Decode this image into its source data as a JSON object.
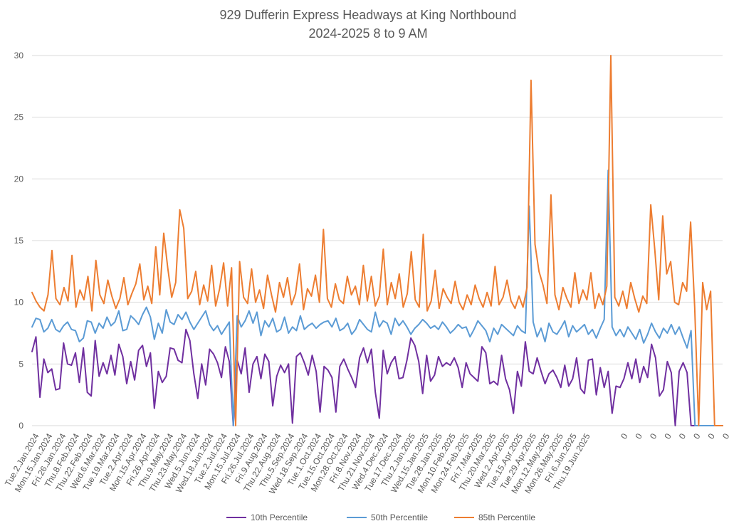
{
  "chart_data": {
    "type": "line",
    "title": "929 Dufferin Express Headways at King Northbound",
    "subtitle": "2024-2025 8 to 9 AM",
    "xlabel": "",
    "ylabel": "",
    "ylim": [
      0,
      30
    ],
    "yticks": [
      0,
      5,
      10,
      15,
      20,
      25,
      30
    ],
    "grid": "horizontal",
    "legend_position": "bottom",
    "x_tick_labels": [
      "Tue.2.Jan.2024",
      "Mon.15.Jan.2024",
      "Fri.26.Jan.2024",
      "Thu.8.Feb.2024",
      "Thu.22.Feb.2024",
      "Wed.6.Mar.2024",
      "Tue.19.Mar.2024",
      "Tue.2.Apr.2024",
      "Mon.15.Apr.2024",
      "Fri.26.Apr.2024",
      "Thu.9.May.2024",
      "Thu.23.May.2024",
      "Wed.5.Jun.2024",
      "Wed.18.Jun.2024",
      "Tue.2.Jul.2024",
      "Mon.15.Jul.2024",
      "Fri.26.Jul.2024",
      "Fri.9.Aug.2024",
      "Thu.22.Aug.2024",
      "Thu.5.Sep.2024",
      "Wed.18.Sep.2024",
      "Tue.1.Oct.2024",
      "Tue.15.Oct.2024",
      "Mon.28.Oct.2024",
      "Fri.8.Nov.2024",
      "Thu.21.Nov.2024",
      "Wed.4.Dec.2024",
      "Tue.17.Dec.2024",
      "Thu.2.Jan.2025",
      "Wed.15.Jan.2025",
      "Tue.28.Jan.2025",
      "Mon.10.Feb.2025",
      "Mon.24.Feb.2025",
      "Fri.7.Mar.2025",
      "Thu.20.Mar.2025",
      "Wed.2.Apr.2025",
      "Tue.15.Apr.2025",
      "Tue.29.Apr.2025",
      "Mon.12.May.2025",
      "Mon.26.May.2025",
      "Fri.6.Jun.2025",
      "Thu.19.Jun.2025",
      "0",
      "0",
      "0",
      "0",
      "0",
      "0",
      "0",
      "0",
      "0",
      "0"
    ],
    "series": [
      {
        "name": "10th Percentile",
        "color": "#7030A0",
        "values": [
          6.0,
          7.2,
          2.3,
          5.4,
          4.3,
          4.6,
          2.9,
          3.0,
          6.7,
          5.0,
          4.9,
          5.9,
          3.5,
          6.3,
          2.7,
          2.4,
          6.9,
          4.0,
          5.1,
          4.2,
          5.7,
          4.1,
          6.6,
          5.6,
          3.4,
          5.2,
          3.7,
          6.1,
          6.5,
          4.8,
          5.9,
          1.4,
          4.4,
          3.5,
          4.0,
          6.3,
          6.2,
          5.3,
          5.1,
          7.8,
          6.9,
          4.2,
          2.2,
          5.0,
          3.3,
          6.2,
          5.8,
          5.1,
          3.9,
          6.4,
          5.2,
          0.0,
          5.3,
          4.2,
          6.3,
          2.7,
          5.0,
          5.6,
          3.8,
          5.8,
          5.2,
          1.6,
          4.0,
          4.9,
          4.3,
          5.0,
          0.2,
          5.6,
          5.9,
          5.1,
          4.1,
          5.7,
          4.4,
          1.1,
          4.8,
          4.5,
          3.9,
          1.1,
          4.8,
          5.4,
          4.6,
          3.9,
          3.1,
          5.5,
          6.3,
          5.1,
          6.2,
          2.7,
          0.6,
          6.1,
          4.2,
          5.1,
          5.6,
          3.8,
          3.9,
          5.3,
          7.1,
          6.5,
          5.2,
          2.6,
          5.7,
          3.6,
          4.1,
          5.6,
          4.8,
          5.1,
          4.9,
          5.5,
          4.7,
          3.1,
          5.1,
          4.2,
          3.9,
          3.6,
          6.4,
          5.9,
          3.4,
          3.6,
          3.3,
          5.7,
          3.8,
          2.9,
          1.0,
          4.4,
          3.2,
          6.8,
          4.4,
          4.2,
          5.5,
          4.4,
          3.4,
          4.2,
          4.5,
          3.9,
          3.1,
          4.9,
          3.2,
          3.8,
          5.5,
          3.0,
          2.6,
          5.3,
          5.4,
          2.5,
          4.7,
          3.1,
          4.4,
          1.0,
          3.2,
          3.1,
          3.8,
          5.1,
          3.8,
          5.4,
          3.5,
          4.8,
          3.9,
          6.6,
          5.5,
          2.4,
          2.9,
          5.2,
          4.3,
          0.0,
          4.4,
          5.1,
          4.3,
          0.0,
          0.0,
          0.0,
          0.0,
          0.0,
          0.0,
          0.0,
          0.0,
          0.0
        ]
      },
      {
        "name": "50th Percentile",
        "color": "#5B9BD5",
        "values": [
          8.0,
          8.7,
          8.6,
          7.6,
          7.9,
          8.6,
          7.8,
          7.6,
          8.1,
          8.4,
          7.8,
          7.7,
          6.8,
          7.1,
          8.5,
          8.4,
          7.5,
          8.3,
          7.9,
          8.8,
          8.1,
          8.4,
          9.3,
          7.7,
          7.8,
          8.9,
          8.6,
          8.2,
          9.0,
          9.6,
          8.8,
          7.0,
          8.3,
          7.5,
          9.4,
          8.4,
          8.2,
          9.0,
          8.6,
          9.2,
          8.4,
          7.8,
          8.3,
          8.8,
          9.3,
          8.2,
          7.7,
          8.1,
          7.4,
          7.9,
          8.4,
          0.0,
          8.9,
          8.0,
          8.5,
          9.3,
          8.3,
          9.2,
          7.3,
          8.5,
          8.0,
          8.7,
          7.6,
          7.8,
          8.8,
          7.5,
          8.0,
          7.7,
          8.9,
          7.8,
          8.1,
          8.3,
          7.9,
          8.2,
          8.4,
          8.5,
          8.0,
          8.7,
          7.7,
          7.9,
          8.3,
          7.4,
          7.8,
          8.6,
          8.2,
          7.8,
          7.6,
          9.2,
          8.0,
          8.5,
          8.3,
          7.4,
          8.7,
          8.1,
          8.5,
          8.0,
          7.4,
          7.9,
          8.2,
          8.6,
          8.3,
          7.9,
          8.1,
          7.8,
          8.4,
          8.0,
          7.5,
          7.8,
          8.2,
          7.9,
          8.0,
          7.2,
          7.8,
          8.5,
          8.1,
          7.7,
          6.8,
          7.9,
          7.4,
          8.2,
          7.9,
          7.6,
          7.3,
          8.1,
          7.7,
          7.5,
          17.8,
          8.4,
          7.2,
          7.9,
          6.8,
          8.3,
          7.6,
          7.4,
          7.9,
          8.5,
          7.2,
          8.1,
          7.6,
          7.9,
          8.2,
          7.4,
          7.8,
          7.1,
          7.9,
          8.6,
          20.7,
          8.0,
          7.3,
          7.8,
          7.2,
          8.0,
          7.5,
          7.0,
          7.8,
          6.7,
          7.4,
          8.3,
          7.6,
          7.1,
          7.9,
          7.5,
          8.2,
          7.4,
          8.0,
          7.1,
          6.3,
          7.7,
          0.0,
          0.0,
          0.0,
          0.0,
          0.0,
          0.0,
          0.0,
          0.0
        ]
      },
      {
        "name": "85th Percentile",
        "color": "#ED7D31",
        "values": [
          10.8,
          10.1,
          9.6,
          9.3,
          10.6,
          14.2,
          10.3,
          9.8,
          11.2,
          10.1,
          13.8,
          9.6,
          11.0,
          10.2,
          12.1,
          9.3,
          13.4,
          10.6,
          9.9,
          11.8,
          10.5,
          9.5,
          10.3,
          12.0,
          9.8,
          10.7,
          11.5,
          13.1,
          10.2,
          11.3,
          9.9,
          14.5,
          10.6,
          15.6,
          12.8,
          10.4,
          11.6,
          17.5,
          16.0,
          10.3,
          10.9,
          12.5,
          9.8,
          11.4,
          10.1,
          13.0,
          9.7,
          11.1,
          13.2,
          9.7,
          12.8,
          0.0,
          13.3,
          10.4,
          9.9,
          12.7,
          10.0,
          11.0,
          9.5,
          12.2,
          10.6,
          9.2,
          11.6,
          10.4,
          12.0,
          9.8,
          10.7,
          13.1,
          9.4,
          11.1,
          10.5,
          12.2,
          10.0,
          15.9,
          10.3,
          9.6,
          11.5,
          10.2,
          9.9,
          12.1,
          10.6,
          11.3,
          9.8,
          13.0,
          10.1,
          12.1,
          9.7,
          10.5,
          14.3,
          9.8,
          11.6,
          10.3,
          12.3,
          9.6,
          10.7,
          14.1,
          10.2,
          9.6,
          15.5,
          9.3,
          10.1,
          12.6,
          9.5,
          11.1,
          10.4,
          9.9,
          11.7,
          10.0,
          9.4,
          10.6,
          9.8,
          11.4,
          10.3,
          9.6,
          10.8,
          9.7,
          12.9,
          9.8,
          10.4,
          11.8,
          10.1,
          9.5,
          10.5,
          9.6,
          11.2,
          28.0,
          14.7,
          12.5,
          11.4,
          9.9,
          18.7,
          10.6,
          9.4,
          11.2,
          10.3,
          9.6,
          12.4,
          9.9,
          11.0,
          10.2,
          12.4,
          9.5,
          10.7,
          9.8,
          11.3,
          30.0,
          10.4,
          9.7,
          10.9,
          9.5,
          11.6,
          10.3,
          9.2,
          10.5,
          9.9,
          17.9,
          14.3,
          10.2,
          17.0,
          12.3,
          13.3,
          10.0,
          9.8,
          11.6,
          10.9,
          16.5,
          9.6,
          0.0,
          11.6,
          9.4,
          10.9,
          0.0,
          0.0,
          0.0
        ]
      }
    ]
  }
}
